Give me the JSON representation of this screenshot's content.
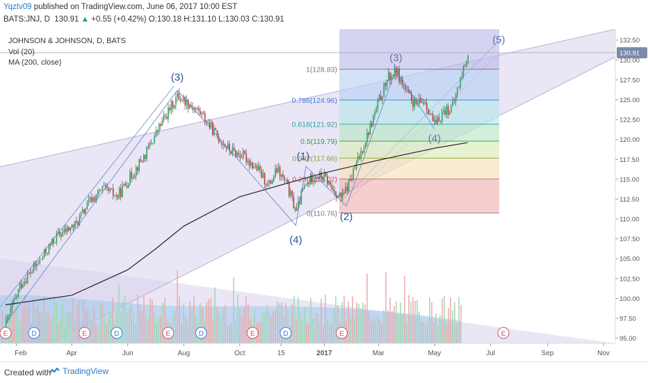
{
  "header": {
    "user": "Yqztv09",
    "published": "published on TradingView.com, June 06, 2017 10:00 EST",
    "symbol": "BATS:JNJ, D",
    "last": "130.91",
    "arrow": "▲",
    "change": "+0.55 (+0.42%)",
    "o_label": "O:",
    "o": "130.18",
    "h_label": "H:",
    "h": "131.10",
    "l_label": "L:",
    "l": "130.03",
    "c_label": "C:",
    "c": "130.91"
  },
  "legend": {
    "title": "JOHNSON & JOHNSON, D, BATS",
    "vol": "Vol (20)",
    "ma": "MA (200, close)"
  },
  "footer": {
    "created": "Created with",
    "brand": "TradingView"
  },
  "colors": {
    "up": "#26a65b",
    "down": "#c0392b",
    "channel": "#d9d2ec",
    "wave": "#2a4f9c",
    "last_price_bg": "#7a8aa8"
  },
  "chart_data": {
    "type": "candlestick",
    "title": "JOHNSON & JOHNSON, D, BATS",
    "ylim": [
      94.0,
      133.0
    ],
    "y_ticks": [
      95.0,
      97.5,
      100.0,
      102.5,
      105.0,
      107.5,
      110.0,
      112.5,
      115.0,
      117.5,
      120.0,
      122.5,
      125.0,
      127.5,
      130.0,
      132.5
    ],
    "last_price": "130.91",
    "x_ticks": [
      {
        "label": "Feb",
        "date": "2016-02-01"
      },
      {
        "label": "Apr",
        "date": "2016-04-01"
      },
      {
        "label": "Jun",
        "date": "2016-06-01"
      },
      {
        "label": "Aug",
        "date": "2016-08-01"
      },
      {
        "label": "Oct",
        "date": "2016-10-01"
      },
      {
        "label": "15",
        "date": "2016-11-15"
      },
      {
        "label": "2017",
        "date": "2017-01-01"
      },
      {
        "label": "Mar",
        "date": "2017-03-01"
      },
      {
        "label": "May",
        "date": "2017-05-01"
      },
      {
        "label": "Jul",
        "date": "2017-07-01"
      },
      {
        "label": "Sep",
        "date": "2017-09-01"
      },
      {
        "label": "Nov",
        "date": "2017-11-01"
      }
    ],
    "price_path": [
      {
        "date": "2016-01-20",
        "close": 96.8
      },
      {
        "date": "2016-02-05",
        "close": 101.8
      },
      {
        "date": "2016-02-25",
        "close": 104.6
      },
      {
        "date": "2016-03-15",
        "close": 107.8
      },
      {
        "date": "2016-04-05",
        "close": 109.3
      },
      {
        "date": "2016-04-20",
        "close": 112.2
      },
      {
        "date": "2016-05-05",
        "close": 113.8
      },
      {
        "date": "2016-05-20",
        "close": 112.8
      },
      {
        "date": "2016-06-05",
        "close": 115.6
      },
      {
        "date": "2016-06-20",
        "close": 118.2
      },
      {
        "date": "2016-07-05",
        "close": 121.6
      },
      {
        "date": "2016-07-15",
        "close": 123.6
      },
      {
        "date": "2016-07-25",
        "close": 125.5
      },
      {
        "date": "2016-08-05",
        "close": 124.6
      },
      {
        "date": "2016-08-20",
        "close": 123.2
      },
      {
        "date": "2016-09-05",
        "close": 120.5
      },
      {
        "date": "2016-09-20",
        "close": 118.6
      },
      {
        "date": "2016-10-05",
        "close": 117.9
      },
      {
        "date": "2016-10-20",
        "close": 116.2
      },
      {
        "date": "2016-11-01",
        "close": 114.2
      },
      {
        "date": "2016-11-10",
        "close": 116.2
      },
      {
        "date": "2016-11-20",
        "close": 114.4
      },
      {
        "date": "2016-12-01",
        "close": 110.9
      },
      {
        "date": "2016-12-08",
        "close": 113.6
      },
      {
        "date": "2016-12-20",
        "close": 115.6
      },
      {
        "date": "2017-01-01",
        "close": 115.2
      },
      {
        "date": "2017-01-10",
        "close": 113.6
      },
      {
        "date": "2017-01-20",
        "close": 112.6
      },
      {
        "date": "2017-02-01",
        "close": 115.8
      },
      {
        "date": "2017-02-10",
        "close": 118.6
      },
      {
        "date": "2017-02-20",
        "close": 121.8
      },
      {
        "date": "2017-03-01",
        "close": 124.8
      },
      {
        "date": "2017-03-10",
        "close": 127.6
      },
      {
        "date": "2017-03-20",
        "close": 128.6
      },
      {
        "date": "2017-04-01",
        "close": 125.6
      },
      {
        "date": "2017-04-10",
        "close": 124.3
      },
      {
        "date": "2017-04-20",
        "close": 124.9
      },
      {
        "date": "2017-05-01",
        "close": 121.6
      },
      {
        "date": "2017-05-10",
        "close": 123.6
      },
      {
        "date": "2017-05-20",
        "close": 124.0
      },
      {
        "date": "2017-05-28",
        "close": 127.3
      },
      {
        "date": "2017-06-06",
        "close": 130.9
      }
    ],
    "ma_200": [
      {
        "date": "2016-01-20",
        "close": 99.2
      },
      {
        "date": "2016-04-01",
        "close": 100.4
      },
      {
        "date": "2016-06-01",
        "close": 103.6
      },
      {
        "date": "2016-07-01",
        "close": 106.2
      },
      {
        "date": "2016-08-01",
        "close": 109.1
      },
      {
        "date": "2016-10-01",
        "close": 112.8
      },
      {
        "date": "2016-12-01",
        "close": 114.8
      },
      {
        "date": "2017-01-01",
        "close": 115.8
      },
      {
        "date": "2017-03-01",
        "close": 117.4
      },
      {
        "date": "2017-05-01",
        "close": 118.9
      },
      {
        "date": "2017-06-06",
        "close": 119.6
      }
    ],
    "fibonacci": [
      {
        "label": "0(110.76)",
        "value": 110.76
      },
      {
        "label": "0.236(115.02)",
        "value": 115.02
      },
      {
        "label": "0.382(117.66)",
        "value": 117.66
      },
      {
        "label": "0.5(119.79)",
        "value": 119.79
      },
      {
        "label": "0.618(121.92)",
        "value": 121.92
      },
      {
        "label": "0.786(124.96)",
        "value": 124.96
      },
      {
        "label": "1(128.83)",
        "value": 128.83
      }
    ],
    "waves": [
      {
        "label": "(3)",
        "date": "2016-07-25",
        "value": 126.2
      },
      {
        "label": "(4)",
        "date": "2016-12-01",
        "value": 109.2
      },
      {
        "label": "(1)",
        "date": "2016-12-12",
        "value": 116.6
      },
      {
        "label": "(2)",
        "date": "2017-01-25",
        "value": 111.6
      },
      {
        "label": "(3)",
        "date": "2017-03-20",
        "value": 128.8
      },
      {
        "label": "(4)",
        "date": "2017-05-01",
        "value": 121.3
      },
      {
        "label": "(5)",
        "date": "2017-07-10",
        "value": 131.6
      }
    ],
    "volume_axis": "Vol (20)",
    "event_markers": [
      {
        "type": "E",
        "date": "2016-01-20"
      },
      {
        "type": "D",
        "date": "2016-02-20"
      },
      {
        "type": "E",
        "date": "2016-04-15"
      },
      {
        "type": "D",
        "date": "2016-05-20"
      },
      {
        "type": "E",
        "date": "2016-07-15"
      },
      {
        "type": "D",
        "date": "2016-08-20"
      },
      {
        "type": "E",
        "date": "2016-10-15"
      },
      {
        "type": "D",
        "date": "2016-11-20"
      },
      {
        "type": "E",
        "date": "2017-01-20"
      },
      {
        "type": "E",
        "date": "2017-07-15"
      }
    ]
  }
}
